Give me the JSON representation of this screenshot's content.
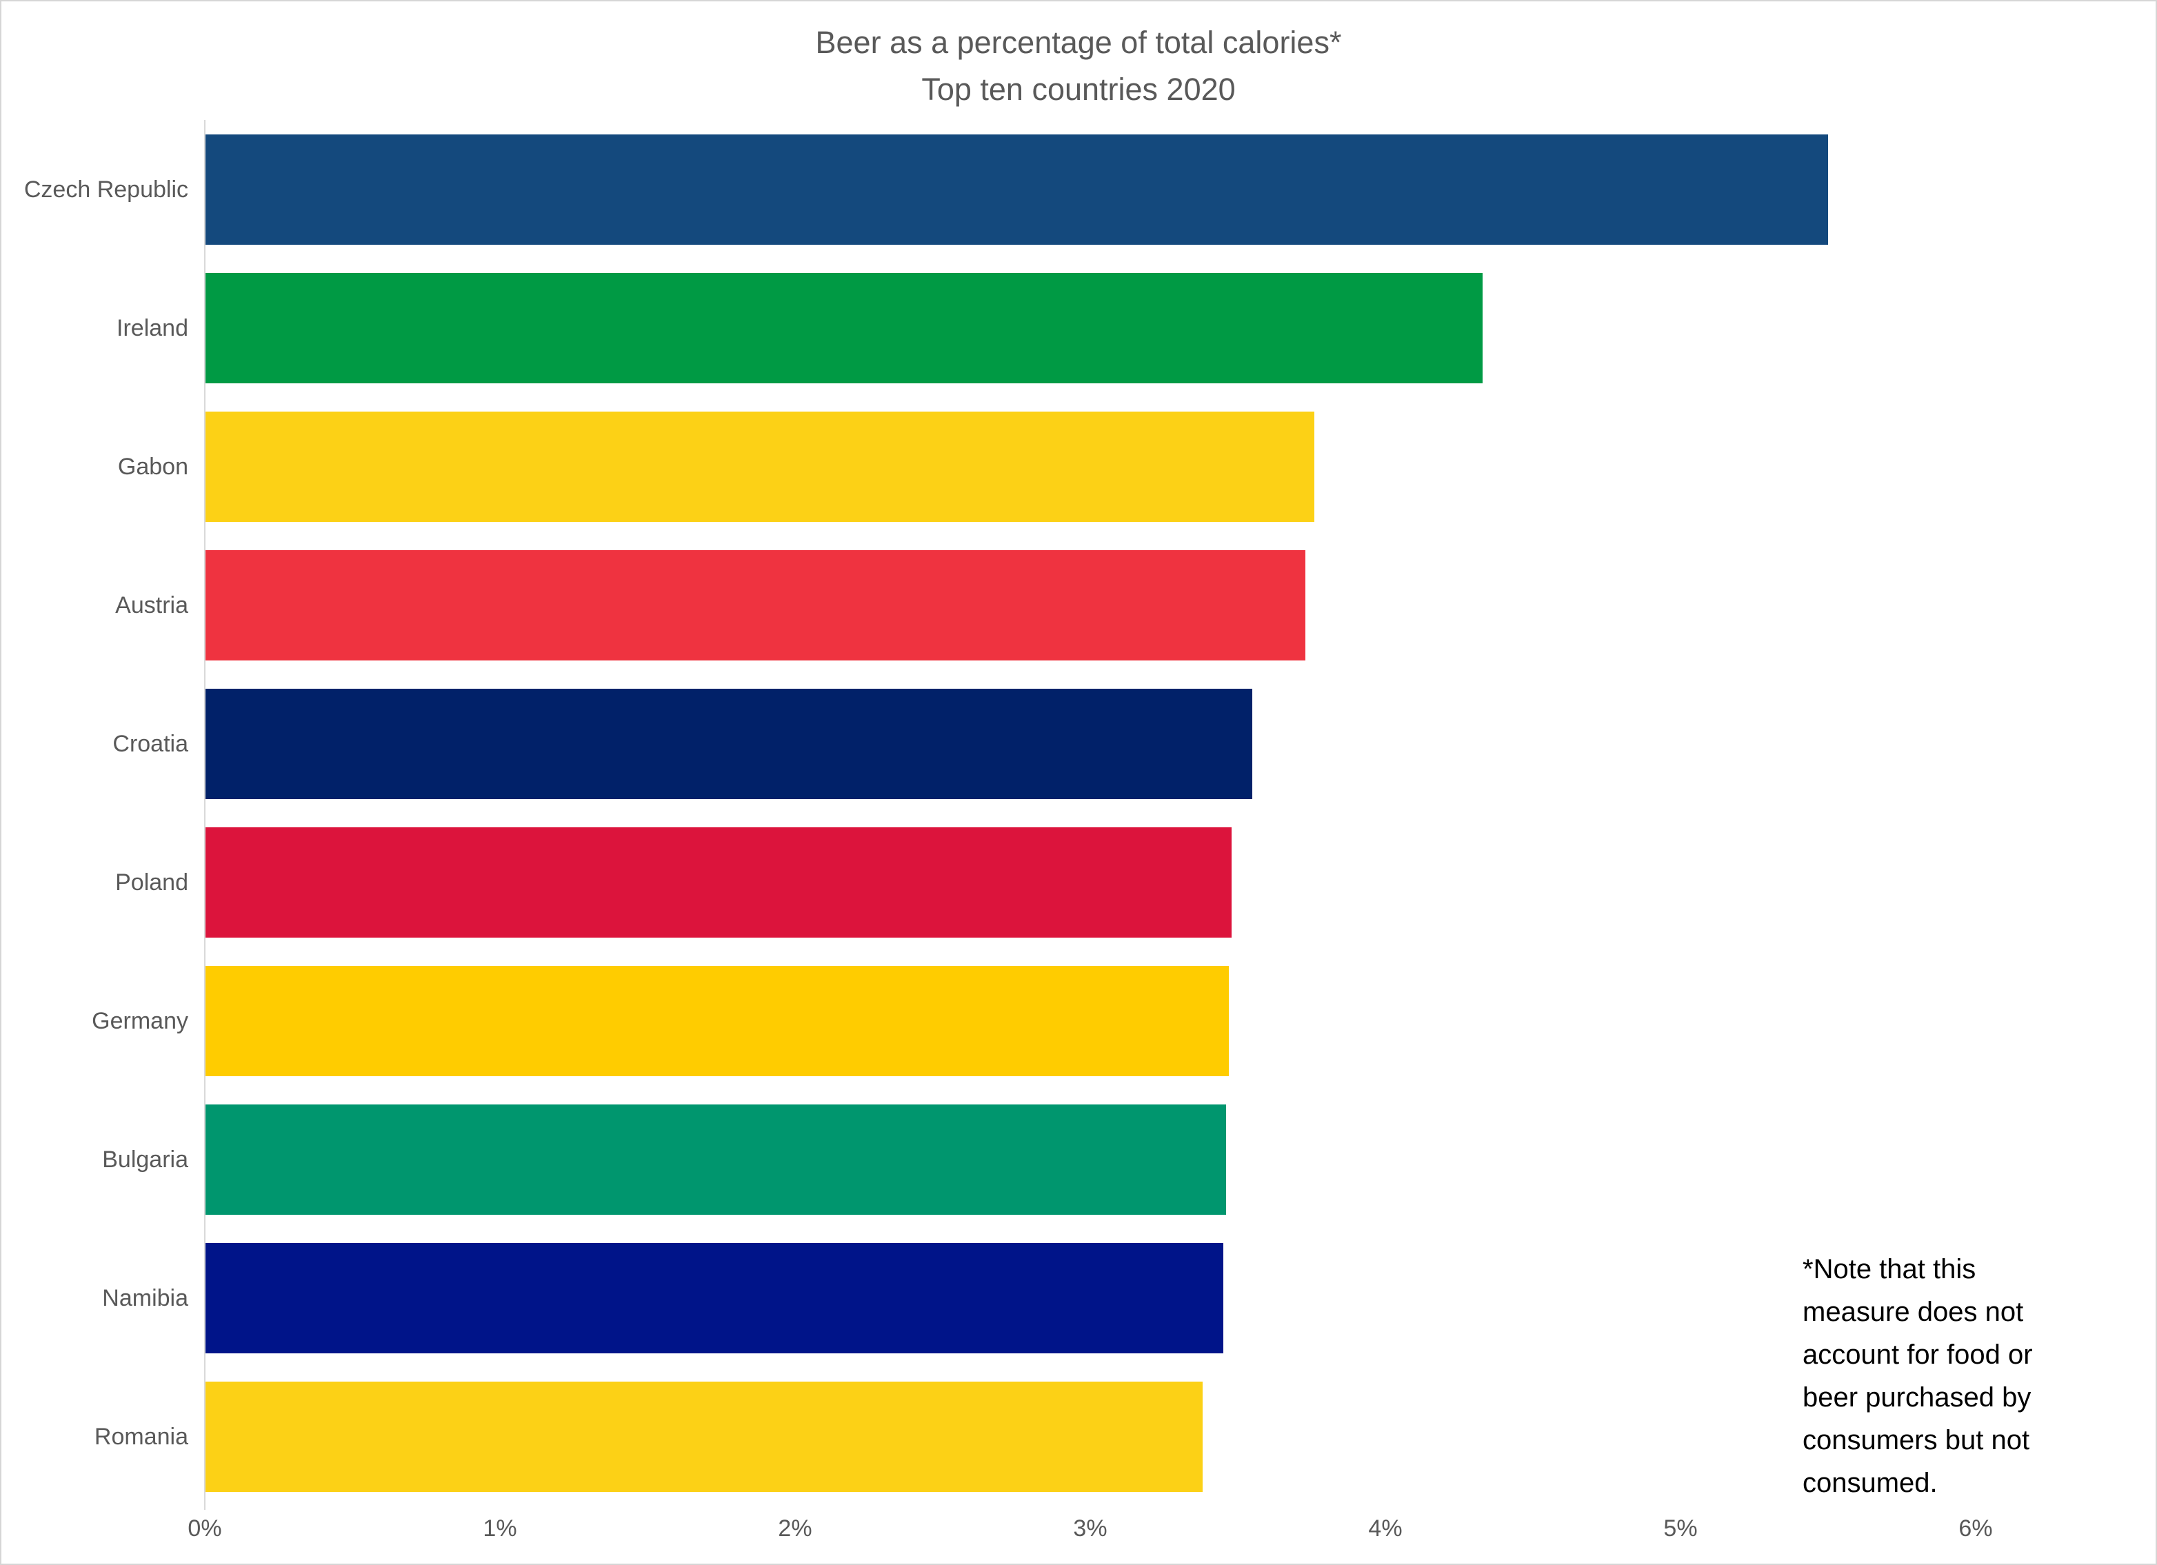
{
  "title": {
    "line1": "Beer as a percentage of total calories*",
    "line2": "Top ten countries 2020"
  },
  "note": "*Note that this\nmeasure does not\naccount for food or\nbeer purchased by\nconsumers but not\nconsumed.",
  "chart_data": {
    "type": "bar",
    "orientation": "horizontal",
    "title": "Beer as a percentage of total calories* — Top ten countries 2020",
    "categories": [
      "Czech Republic",
      "Ireland",
      "Gabon",
      "Austria",
      "Croatia",
      "Poland",
      "Germany",
      "Bulgaria",
      "Namibia",
      "Romania"
    ],
    "values": [
      5.5,
      4.33,
      3.76,
      3.73,
      3.55,
      3.48,
      3.47,
      3.46,
      3.45,
      3.38
    ],
    "unit": "%",
    "bar_colors": [
      "#14497D",
      "#009A44",
      "#FCD116",
      "#EF3340",
      "#012169",
      "#DC143C",
      "#FFCC00",
      "#00966E",
      "#001489",
      "#FCD116"
    ],
    "xlabel": "",
    "ylabel": "",
    "xlim": [
      0,
      6
    ],
    "x_ticks": [
      "0%",
      "1%",
      "2%",
      "3%",
      "4%",
      "5%",
      "6%"
    ],
    "grid": false,
    "legend": false,
    "sort": "descending"
  },
  "colors": {
    "title_text": "#595959",
    "axis_text": "#595959",
    "axis_line": "#D9D9D9",
    "note_text": "#000000",
    "background": "#FFFFFF",
    "border": "#D6D6D6"
  }
}
